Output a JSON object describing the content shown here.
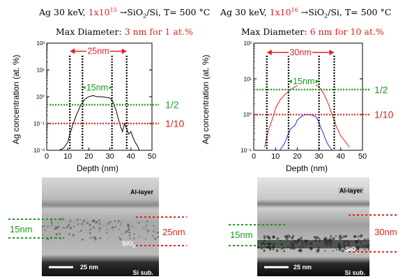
{
  "left": {
    "title_pre": "Ag 30 keV, ",
    "title_fluence": "1x10",
    "title_exp": "15",
    "title_post": " →SiO",
    "title_sub2": "2",
    "title_post2": "/Si, T= 500 °C",
    "maxdiam_label": "Max Diameter: ",
    "maxdiam_value": "3 nm for 1 at.%",
    "tem_scale": "25 nm",
    "tem_al": "Al-layer",
    "tem_sio2": "SiO",
    "tem_sio2_sub": "2",
    "tem_si": "Si sub.",
    "tem_left_dim": "15nm",
    "tem_right_dim": "25nm"
  },
  "right": {
    "title_pre": "Ag 30 keV, ",
    "title_fluence": "1x10",
    "title_exp": "16",
    "title_post": " →SiO",
    "title_sub2": "2",
    "title_post2": "/Si, T= 500 °C",
    "maxdiam_label": "Max Diameter: ",
    "maxdiam_value": "6 nm for 10 at.%",
    "tem_scale": "25 nm",
    "tem_al": "Al-layer",
    "tem_sio2": "SiO",
    "tem_sio2_sub": "2",
    "tem_si": "Si sub.",
    "tem_left_dim": "15nm",
    "tem_right_dim": "30nm"
  },
  "chart_data": [
    {
      "type": "line",
      "xlabel": "Depth (nm)",
      "ylabel": "Ag concentration (at. %)",
      "xlim": [
        0,
        50
      ],
      "ylim": [
        0.01,
        100
      ],
      "yscale": "log",
      "xticks": [
        0,
        10,
        20,
        30,
        40,
        50
      ],
      "yticks": [
        "10⁻²",
        "10⁻¹",
        "10⁰",
        "10¹",
        "10²"
      ],
      "series": [
        {
          "color": "#000000",
          "x": [
            6,
            8,
            10,
            11,
            12,
            13,
            14,
            15,
            16,
            17,
            18,
            19,
            20,
            22,
            24,
            26,
            28,
            30,
            31,
            32,
            33,
            34,
            35,
            36,
            37,
            38,
            39,
            40,
            41,
            42,
            43,
            44
          ],
          "y": [
            0.01,
            0.012,
            0.02,
            0.04,
            0.07,
            0.12,
            0.2,
            0.3,
            0.45,
            0.6,
            0.8,
            0.9,
            1.0,
            1.1,
            1.0,
            1.0,
            0.95,
            0.9,
            0.75,
            0.5,
            0.3,
            0.15,
            0.08,
            0.05,
            0.1,
            0.06,
            0.04,
            0.05,
            0.03,
            0.02,
            0.015,
            0.01
          ]
        }
      ],
      "hlines": [
        {
          "y": 0.5,
          "color": "#1a9a1a",
          "label": "1/2"
        },
        {
          "y": 0.1,
          "color": "#e02020",
          "label": "1/10"
        }
      ],
      "vlines": [
        11,
        17,
        31,
        38
      ],
      "annotations": [
        {
          "label": "25nm",
          "x1": 11,
          "x2": 38,
          "y": 50,
          "color": "#e02020"
        },
        {
          "label": "15nm",
          "x1": 17,
          "x2": 31,
          "y": 2.2,
          "color": "#1a9a1a"
        }
      ]
    },
    {
      "type": "line",
      "xlabel": "Depth (nm)",
      "ylabel": "Ag concentration (at. %)",
      "xlim": [
        0,
        50
      ],
      "ylim": [
        0.1,
        100
      ],
      "yscale": "log",
      "xticks": [
        0,
        10,
        20,
        30,
        40,
        50
      ],
      "yticks": [
        "10⁻¹",
        "10⁰",
        "10¹",
        "10²"
      ],
      "series": [
        {
          "color": "#e02020",
          "x": [
            5,
            6,
            7,
            8,
            9,
            10,
            12,
            14,
            16,
            18,
            20,
            22,
            24,
            26,
            28,
            30,
            32,
            33,
            34,
            35,
            36,
            37,
            38,
            39,
            40,
            42,
            44
          ],
          "y": [
            0.12,
            0.25,
            0.4,
            0.6,
            0.9,
            1.5,
            2.5,
            3.5,
            4.5,
            5.5,
            6.5,
            7.5,
            8,
            8,
            7,
            6,
            4,
            3,
            2.2,
            1.5,
            1.0,
            0.7,
            0.45,
            0.35,
            0.25,
            0.18,
            0.12
          ]
        },
        {
          "color": "#2030d0",
          "x": [
            12,
            14,
            16,
            17,
            18,
            19,
            20,
            22,
            24,
            26,
            28,
            29,
            30,
            31,
            32,
            33,
            34,
            35,
            36
          ],
          "y": [
            0.1,
            0.15,
            0.3,
            0.4,
            0.45,
            0.5,
            0.7,
            0.9,
            1.0,
            1.0,
            0.9,
            0.8,
            0.6,
            0.4,
            0.3,
            0.2,
            0.15,
            0.12,
            0.1
          ]
        }
      ],
      "hlines": [
        {
          "y": 5.0,
          "color": "#1a9a1a",
          "label": "1/2"
        },
        {
          "y": 1.0,
          "color": "#e02020",
          "label": "1/10"
        }
      ],
      "vlines": [
        6,
        16,
        30,
        37
      ],
      "annotations": [
        {
          "label": "30nm",
          "x1": 6,
          "x2": 37,
          "y": 55,
          "color": "#e02020"
        },
        {
          "label": "15nm",
          "x1": 16,
          "x2": 30,
          "y": 8.5,
          "color": "#1a9a1a"
        }
      ]
    }
  ]
}
